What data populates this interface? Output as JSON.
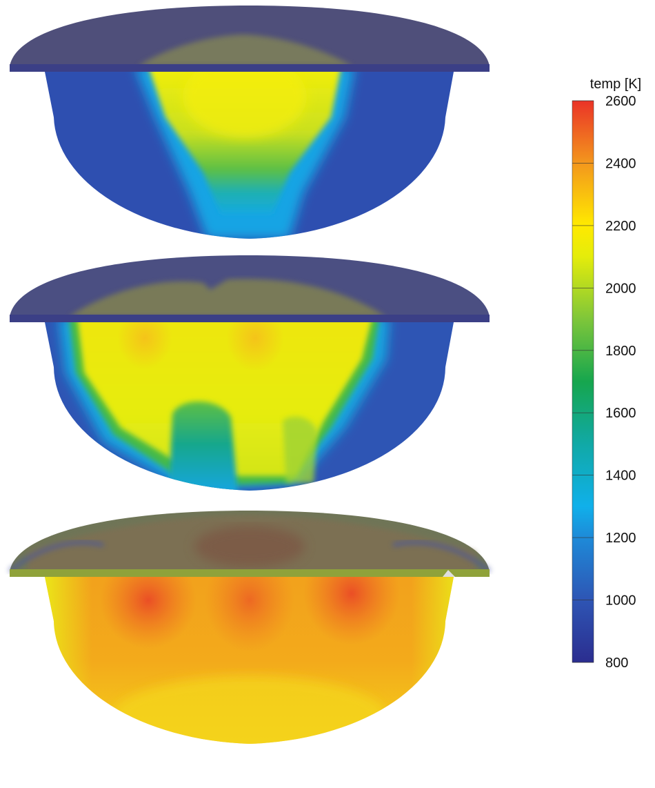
{
  "colorbar": {
    "title": "temp [K]",
    "min": 800,
    "max": 2600,
    "ticks": [
      2600,
      2400,
      2200,
      2000,
      1800,
      1600,
      1400,
      1200,
      1000,
      800
    ],
    "colormap": [
      {
        "value": 800,
        "color": "#2b2d8f"
      },
      {
        "value": 1000,
        "color": "#2e55b4"
      },
      {
        "value": 1200,
        "color": "#1e8ad8"
      },
      {
        "value": 1300,
        "color": "#10b0ea"
      },
      {
        "value": 1500,
        "color": "#11a9a6"
      },
      {
        "value": 1700,
        "color": "#16a64e"
      },
      {
        "value": 1900,
        "color": "#7ec63a"
      },
      {
        "value": 2100,
        "color": "#e4ec0b"
      },
      {
        "value": 2200,
        "color": "#ffea00"
      },
      {
        "value": 2400,
        "color": "#f3971d"
      },
      {
        "value": 2600,
        "color": "#ea3327"
      }
    ]
  },
  "panels": [
    {
      "id": "panel-1",
      "lid_color": "#4f4f7a",
      "dominant": "cool core, hot central plume"
    },
    {
      "id": "panel-2",
      "lid_color": "#5d5e6c",
      "dominant": "mostly hot, cooler bottom region"
    },
    {
      "id": "panel-3",
      "lid_color": "#7a6a4a",
      "dominant": "fully hot"
    }
  ]
}
